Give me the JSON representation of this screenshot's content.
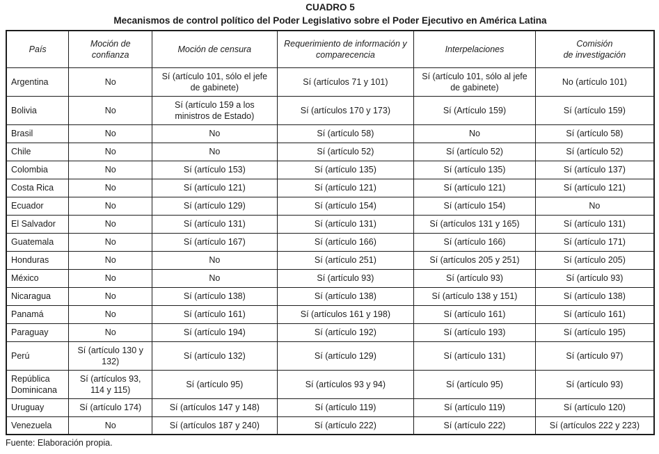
{
  "title": {
    "line1": "CUADRO 5",
    "line2": "Mecanismos de control político del Poder Legislativo sobre el Poder Ejecutivo en América Latina"
  },
  "table": {
    "columns": [
      "País",
      "Moción de\nconfianza",
      "Moción de censura",
      "Requerimiento de información y\ncomparecencia",
      "Interpelaciones",
      "Comisión\nde investigación"
    ],
    "rows": [
      [
        "Argentina",
        "No",
        "Sí (artículo 101, sólo el jefe de gabinete)",
        "Sí (artículos 71 y 101)",
        "Sí (artículo 101, sólo al jefe de gabinete)",
        "No (artículo 101)"
      ],
      [
        "Bolivia",
        "No",
        "Sí (artículo 159 a los ministros de Estado)",
        "Sí (artículos 170 y 173)",
        "Sí (Artículo 159)",
        "Sí (artículo 159)"
      ],
      [
        "Brasil",
        "No",
        "No",
        "Sí (artículo 58)",
        "No",
        "Sí (artículo 58)"
      ],
      [
        "Chile",
        "No",
        "No",
        "Sí (artículo 52)",
        "Sí (artículo 52)",
        "Sí (artículo 52)"
      ],
      [
        "Colombia",
        "No",
        "Sí (artículo 153)",
        "Sí (artículo 135)",
        "Sí (artículo 135)",
        "Sí (artículo 137)"
      ],
      [
        "Costa Rica",
        "No",
        "Sí (artículo 121)",
        "Sí (artículo 121)",
        "Sí (artículo 121)",
        "Sí (artículo 121)"
      ],
      [
        "Ecuador",
        "No",
        "Sí (artículo 129)",
        "Sí (artículo 154)",
        "Sí (artículo 154)",
        "No"
      ],
      [
        "El Salvador",
        "No",
        "Sí (artículo 131)",
        "Sí (artículo 131)",
        "Sí (artículos 131 y 165)",
        "Sí (artículo 131)"
      ],
      [
        "Guatemala",
        "No",
        "Sí (artículo 167)",
        "Sí (artículo 166)",
        "Sí (artículo 166)",
        "Sí (artículo 171)"
      ],
      [
        "Honduras",
        "No",
        "No",
        "Sí (artículo 251)",
        "Sí (artículos 205 y 251)",
        "Sí (artículo 205)"
      ],
      [
        "México",
        "No",
        "No",
        "Sí (artículo 93)",
        "Sí (artículo 93)",
        "Sí (artículo 93)"
      ],
      [
        "Nicaragua",
        "No",
        "Sí (artículo 138)",
        "Sí (artículo 138)",
        "Sí (artículo 138 y 151)",
        "Sí (artículo 138)"
      ],
      [
        "Panamá",
        "No",
        "Sí (artículo 161)",
        "Sí (artículos 161 y 198)",
        "Sí (artículo 161)",
        "Sí (artículo 161)"
      ],
      [
        "Paraguay",
        "No",
        "Sí (artículo 194)",
        "Sí (artículo 192)",
        "Sí (artículo 193)",
        "Sí (artículo 195)"
      ],
      [
        "Perú",
        "Sí (artículo 130 y 132)",
        "Sí (artículo 132)",
        "Sí (artículo 129)",
        "Sí (artículo 131)",
        "Sí (artículo 97)"
      ],
      [
        "República Dominicana",
        "Sí (artículos 93, 114 y 115)",
        "Sí (artículo 95)",
        "Sí (artículos 93 y 94)",
        "Sí (artículo 95)",
        "Sí (artículo 93)"
      ],
      [
        "Uruguay",
        "Sí (artículo 174)",
        "Sí (artículos 147 y 148)",
        "Sí (artículo 119)",
        "Sí (artículo 119)",
        "Sí (artículo 120)"
      ],
      [
        "Venezuela",
        "No",
        "Sí (artículos 187 y 240)",
        "Sí (artículo 222)",
        "Sí (artículo 222)",
        "Sí (artículos 222 y 223)"
      ]
    ]
  },
  "source": "Fuente: Elaboración propia."
}
